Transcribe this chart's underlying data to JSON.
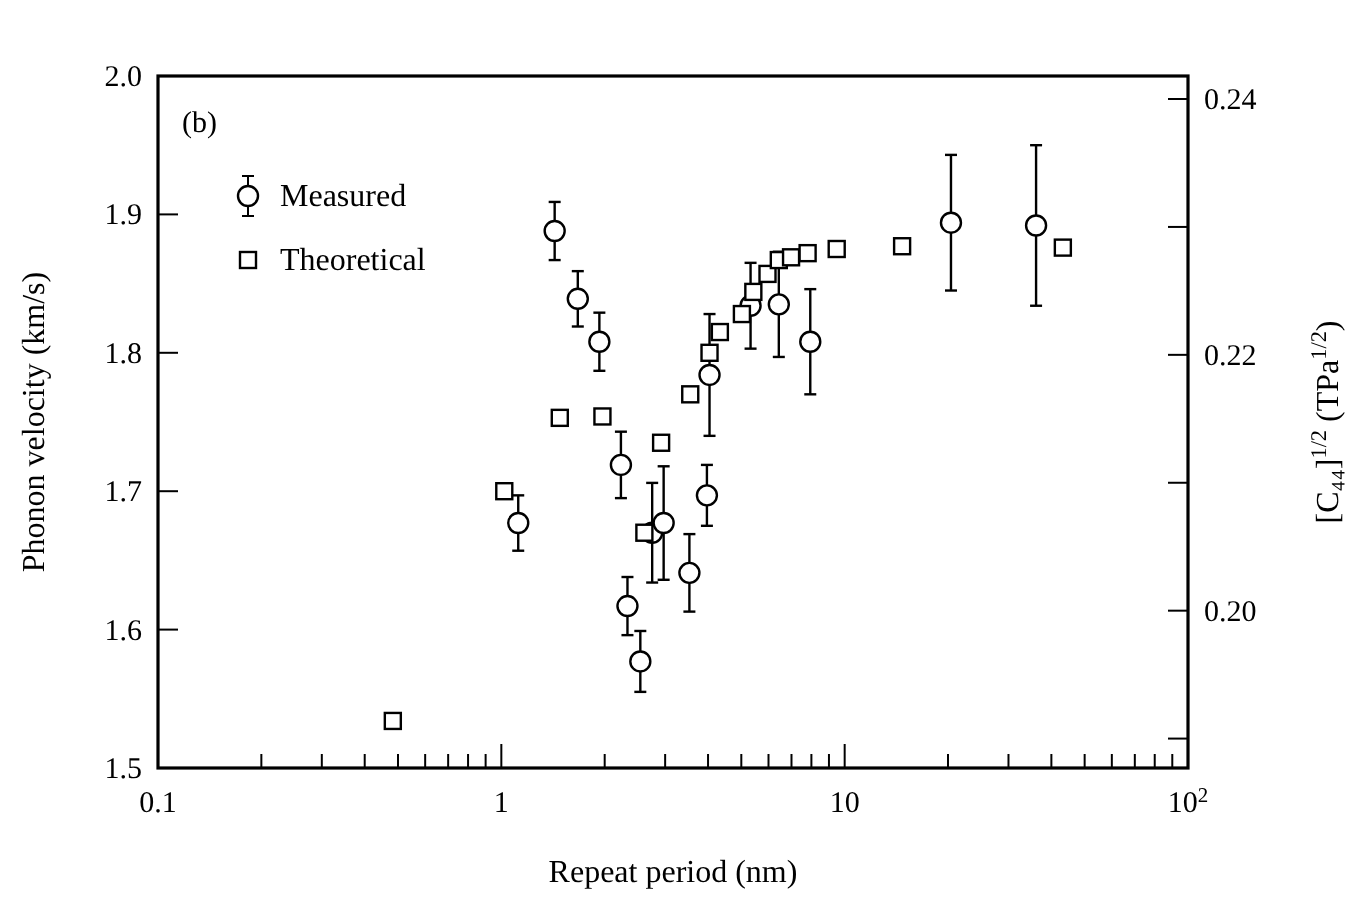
{
  "chart_data": {
    "type": "scatter",
    "xlabel": "Repeat period (nm)",
    "ylabel": "Phonon velocity (km/s)",
    "y2label": "[C₄₄]$^{1/2}$ (TPa$^{1/2}$)",
    "annotations": [
      "(b)"
    ],
    "log": "x",
    "xlim": [
      0.1,
      100
    ],
    "xticks": [
      0.1,
      {
        "value": 0.2,
        "label": null
      },
      {
        "value": 0.3,
        "label": null
      },
      {
        "value": 0.4,
        "label": null
      },
      {
        "value": 0.5,
        "label": null
      },
      {
        "value": 0.6,
        "label": null
      },
      {
        "value": 0.7,
        "label": null
      },
      {
        "value": 0.8,
        "label": null
      },
      {
        "value": 0.9,
        "label": null
      },
      1,
      {
        "value": 2,
        "label": null
      },
      {
        "value": 3,
        "label": null
      },
      {
        "value": 4,
        "label": null
      },
      {
        "value": 5,
        "label": null
      },
      {
        "value": 6,
        "label": null
      },
      {
        "value": 7,
        "label": null
      },
      {
        "value": 8,
        "label": null
      },
      {
        "value": 9,
        "label": null
      },
      10,
      {
        "value": 20,
        "label": null
      },
      {
        "value": 30,
        "label": null
      },
      {
        "value": 40,
        "label": null
      },
      {
        "value": 50,
        "label": null
      },
      {
        "value": 60,
        "label": null
      },
      {
        "value": 70,
        "label": null
      },
      {
        "value": 80,
        "label": null
      },
      {
        "value": 90,
        "label": null
      },
      {
        "value": 100,
        "label": "10$^{2}$"
      }
    ],
    "ylim": [
      1.5,
      2.0
    ],
    "yticks": [
      1.5,
      1.6,
      1.7,
      1.8,
      1.9,
      {
        "value": 2.0,
        "label": "2.0"
      }
    ],
    "y2lim": [
      0.1877,
      0.2418
    ],
    "y2ticks": [
      {
        "value": 0.19,
        "label": null
      },
      {
        "value": 0.2,
        "label": "0.20"
      },
      {
        "value": 0.21,
        "label": null
      },
      0.22,
      {
        "value": 0.23,
        "label": null
      },
      0.24
    ],
    "grid": false,
    "legend": "top left",
    "series": [
      {
        "name": "Measured",
        "marker": "circle",
        "color": "#000000",
        "x": [
          1.12,
          1.43,
          1.67,
          1.93,
          2.23,
          2.33,
          2.54,
          2.75,
          2.97,
          3.53,
          3.97,
          4.04,
          5.32,
          6.43,
          7.94,
          20.4,
          36.1
        ],
        "values": [
          1.677,
          1.888,
          1.839,
          1.808,
          1.719,
          1.617,
          1.577,
          1.67,
          1.677,
          1.641,
          1.697,
          1.784,
          1.834,
          1.835,
          1.808,
          1.894,
          1.892
        ],
        "errors": [
          0.02,
          0.021,
          0.02,
          0.021,
          0.024,
          0.021,
          0.022,
          0.036,
          0.041,
          0.028,
          0.022,
          0.044,
          0.031,
          0.038,
          0.038,
          0.049,
          0.058
        ]
      },
      {
        "name": "Theoretical",
        "marker": "square",
        "color": "#000000",
        "x": [
          0.483,
          1.02,
          1.48,
          1.97,
          2.61,
          2.92,
          3.55,
          4.04,
          4.33,
          5.02,
          5.42,
          5.96,
          6.43,
          6.98,
          7.8,
          9.48,
          14.7,
          43.2
        ],
        "values": [
          1.534,
          1.7,
          1.753,
          1.754,
          1.67,
          1.735,
          1.77,
          1.8,
          1.815,
          1.828,
          1.844,
          1.857,
          1.867,
          1.869,
          1.872,
          1.875,
          1.877,
          1.876
        ]
      }
    ]
  }
}
